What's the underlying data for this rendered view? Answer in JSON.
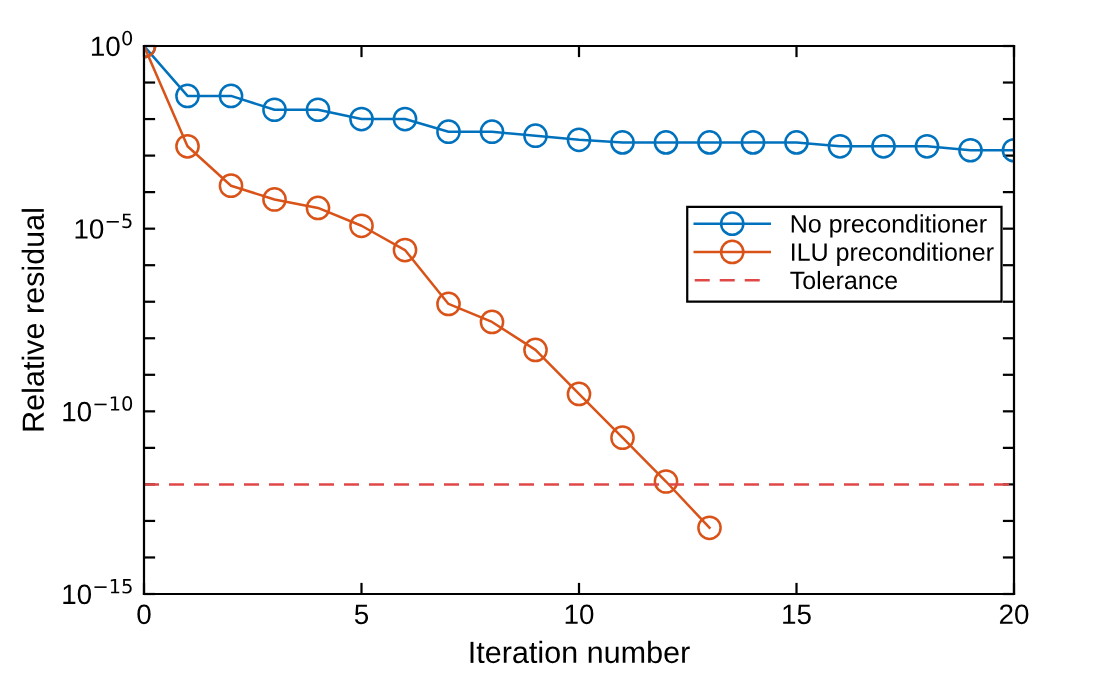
{
  "chart_data": {
    "type": "line",
    "xlabel": "Iteration number",
    "ylabel": "Relative residual",
    "x": [
      0,
      1,
      2,
      3,
      4,
      5,
      6,
      7,
      8,
      9,
      10,
      11,
      12,
      13,
      14,
      15,
      16,
      17,
      18,
      19,
      20
    ],
    "series": [
      {
        "name": "No preconditioner",
        "color": "#0072bd",
        "values": [
          1,
          0.043,
          0.043,
          0.018,
          0.018,
          0.01,
          0.01,
          0.0045,
          0.0045,
          0.0035,
          0.0027,
          0.0023,
          0.0023,
          0.0023,
          0.0023,
          0.0023,
          0.0018,
          0.0018,
          0.0018,
          0.0014,
          0.0014
        ]
      },
      {
        "name": "ILU preconditioner",
        "color": "#d95319",
        "x": [
          0,
          1,
          2,
          3,
          4,
          5,
          6,
          7,
          8,
          9,
          10,
          11,
          12,
          13
        ],
        "values": [
          1,
          0.0018,
          0.00015,
          6.3e-05,
          3.7e-05,
          1.2e-05,
          2.6e-06,
          8.7e-08,
          2.8e-08,
          4.8e-09,
          3e-10,
          1.9e-11,
          1.2e-12,
          6.5e-14
        ]
      }
    ],
    "ref_lines": [
      {
        "axis": "y",
        "value": 1e-12,
        "label": "Tolerance",
        "color": "#e04848",
        "line_style": "dashed"
      }
    ],
    "log": "y",
    "marker": "circle",
    "line_style": "solid",
    "legend": "right",
    "grid": false,
    "xlim": [
      0,
      20
    ],
    "xticks": [
      0,
      5,
      10,
      15,
      20
    ],
    "ylim": [
      1e-15,
      1
    ],
    "yticks": [
      {
        "value": 1,
        "label": "10$^{0}$"
      },
      {
        "value": 0.1,
        "label": null
      },
      {
        "value": 0.01,
        "label": null
      },
      {
        "value": 0.001,
        "label": null
      },
      {
        "value": 0.0001,
        "label": null
      },
      {
        "value": 1e-05,
        "label": "10$^{−5}$"
      },
      {
        "value": 1e-06,
        "label": null
      },
      {
        "value": 1e-07,
        "label": null
      },
      {
        "value": 1e-08,
        "label": null
      },
      {
        "value": 1e-09,
        "label": null
      },
      {
        "value": 1e-10,
        "label": "10$^{−10}$"
      },
      {
        "value": 1e-11,
        "label": null
      },
      {
        "value": 1e-12,
        "label": null
      },
      {
        "value": 1e-13,
        "label": null
      },
      {
        "value": 1e-14,
        "label": null
      },
      {
        "value": 1e-15,
        "label": "10$^{−15}$"
      }
    ]
  }
}
